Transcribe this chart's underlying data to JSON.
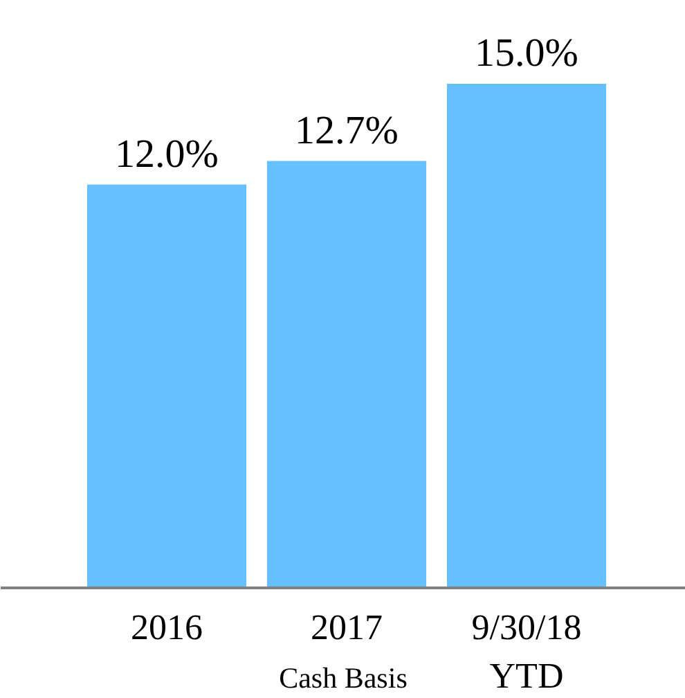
{
  "chart_data": {
    "type": "bar",
    "categories": [
      "2016",
      "2017",
      "9/30/18\nYTD"
    ],
    "values": [
      12.0,
      12.7,
      15.0
    ],
    "value_labels": [
      "12.0%",
      "12.7%",
      "15.0%"
    ],
    "color": "#66bfff",
    "xlabel": "Cash Basis"
  }
}
